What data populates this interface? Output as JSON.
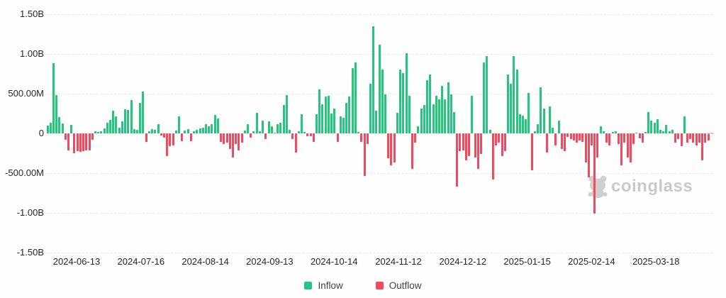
{
  "watermark": {
    "brand": "coinglass"
  },
  "legend": {
    "inflow_label": "Inflow",
    "outflow_label": "Outflow"
  },
  "colors": {
    "inflow": "#22c77d",
    "outflow": "#f5485d",
    "grid": "#e8e8e8",
    "axis_text": "#262626",
    "legend_text": "#3f3f3f",
    "watermark": "#c9c9c9",
    "latest_marker": "#a9e2cf",
    "background": "#fefefe"
  },
  "chart_data": {
    "type": "bar",
    "title": "",
    "description": "Daily ETF flow bars: positive values are Inflow (green), negative values are Outflow (red). Values estimated from gridlines, in millions of USD.",
    "grid": "horizontal dashed",
    "legend_position": "bottom",
    "ylim_musd": [
      -1500,
      1500
    ],
    "y_tick_labels": [
      "1.50B",
      "1.00B",
      "500.00M",
      "0",
      "-500.00M",
      "-1.00B",
      "-1.50B"
    ],
    "y_tick_values_musd": [
      1500,
      1000,
      500,
      0,
      -500,
      -1000,
      -1500
    ],
    "x_tick_labels": [
      "2024-06-13",
      "2024-07-16",
      "2024-08-14",
      "2024-09-13",
      "2024-10-14",
      "2024-11-12",
      "2024-12-12",
      "2025-01-15",
      "2025-02-14",
      "2025-03-18"
    ],
    "legend": [
      {
        "label": "Inflow",
        "color": "#22c77d"
      },
      {
        "label": "Outflow",
        "color": "#f5485d"
      }
    ],
    "values_musd": [
      95,
      135,
      885,
      480,
      205,
      125,
      -80,
      -215,
      105,
      -250,
      -220,
      -235,
      -225,
      -210,
      -215,
      -80,
      25,
      20,
      30,
      60,
      130,
      170,
      285,
      210,
      75,
      150,
      300,
      295,
      420,
      55,
      45,
      380,
      525,
      -105,
      30,
      50,
      45,
      120,
      -25,
      -50,
      -285,
      -165,
      -150,
      40,
      215,
      -100,
      35,
      50,
      -100,
      30,
      45,
      60,
      75,
      115,
      90,
      115,
      230,
      185,
      -105,
      -135,
      -120,
      -195,
      -300,
      -135,
      -210,
      -120,
      40,
      120,
      -55,
      30,
      255,
      25,
      165,
      -75,
      150,
      90,
      10,
      120,
      135,
      360,
      480,
      45,
      -75,
      -240,
      30,
      240,
      15,
      -40,
      -35,
      -105,
      240,
      550,
      370,
      460,
      475,
      250,
      310,
      -105,
      210,
      195,
      385,
      460,
      820,
      890,
      20,
      -105,
      -535,
      -135,
      625,
      1350,
      285,
      1120,
      805,
      490,
      -315,
      -405,
      -370,
      255,
      805,
      760,
      1010,
      475,
      -445,
      -120,
      90,
      310,
      355,
      670,
      745,
      370,
      475,
      430,
      595,
      430,
      640,
      490,
      270,
      -670,
      -225,
      -210,
      -340,
      -285,
      475,
      -300,
      -445,
      -255,
      895,
      975,
      45,
      -580,
      -150,
      -120,
      -285,
      -225,
      745,
      625,
      975,
      805,
      240,
      225,
      180,
      505,
      -460,
      30,
      120,
      580,
      310,
      -240,
      340,
      75,
      -150,
      165,
      -195,
      -225,
      -45,
      -75,
      -90,
      -120,
      -90,
      -105,
      -370,
      -550,
      -150,
      -1010,
      -300,
      90,
      25,
      -120,
      -150,
      15,
      25,
      -135,
      -400,
      -120,
      -300,
      -370,
      -135,
      10,
      -60,
      -120,
      20,
      270,
      165,
      135,
      180,
      45,
      30,
      105,
      30,
      45,
      -120,
      -75,
      -165,
      210,
      -120,
      -75,
      -120,
      -150,
      -120,
      -340,
      -120,
      -90
    ]
  }
}
